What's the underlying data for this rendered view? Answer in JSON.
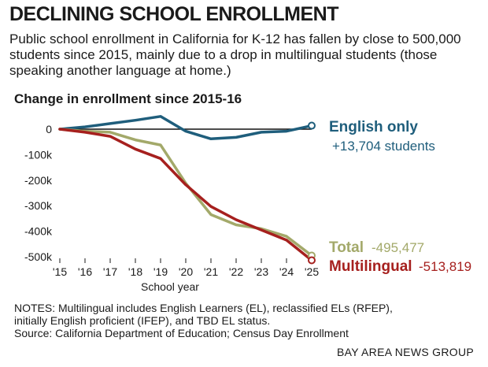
{
  "headline": "DECLINING SCHOOL ENROLLMENT",
  "deck": "Public school enrollment in California for K-12 has fallen by close to 500,000 students since 2015, mainly due to a drop in multilingual students (those speaking another language at home.)",
  "notes": [
    "NOTES: Multilingual includes English Learners (EL), reclassified ELs (RFEP),",
    "initially English proficient (IFEP), and TBD EL status.",
    "Source: California Department of Education; Census Day Enrollment"
  ],
  "credit": "BAY AREA NEWS GROUP",
  "colors": {
    "english": "#1f5e7c",
    "total": "#a3a96a",
    "multilingual": "#a6201e",
    "zero_line": "#111111"
  },
  "chart_data": {
    "type": "line",
    "title": "Change in enrollment since 2015-16",
    "xlabel": "School year",
    "ylabel": "",
    "x": [
      "'15",
      "'16",
      "'17",
      "'18",
      "'19",
      "'20",
      "'21",
      "'22",
      "'23",
      "'24",
      "'25"
    ],
    "y_ticks": [
      0,
      -100000,
      -200000,
      -300000,
      -400000,
      -500000
    ],
    "y_tick_labels": [
      "0",
      "-100k",
      "-200k",
      "-300k",
      "-400k",
      "-500k"
    ],
    "ylim": [
      -530000,
      60000
    ],
    "series": [
      {
        "name": "English only",
        "color": "#1f5e7c",
        "values": [
          0,
          9000,
          22000,
          35000,
          50000,
          -8000,
          -38000,
          -32000,
          -12000,
          -8000,
          13704
        ],
        "end_label": "English only",
        "end_value_label": "+13,704 students"
      },
      {
        "name": "Total",
        "color": "#a3a96a",
        "values": [
          0,
          -8000,
          -12000,
          -42000,
          -62000,
          -212000,
          -335000,
          -375000,
          -390000,
          -420000,
          -495477
        ],
        "end_label": "Total",
        "end_value_label": "-495,477"
      },
      {
        "name": "Multilingual",
        "color": "#a6201e",
        "values": [
          0,
          -12000,
          -28000,
          -78000,
          -115000,
          -218000,
          -303000,
          -355000,
          -395000,
          -435000,
          -513819
        ],
        "end_label": "Multilingual",
        "end_value_label": "-513,819"
      }
    ]
  }
}
